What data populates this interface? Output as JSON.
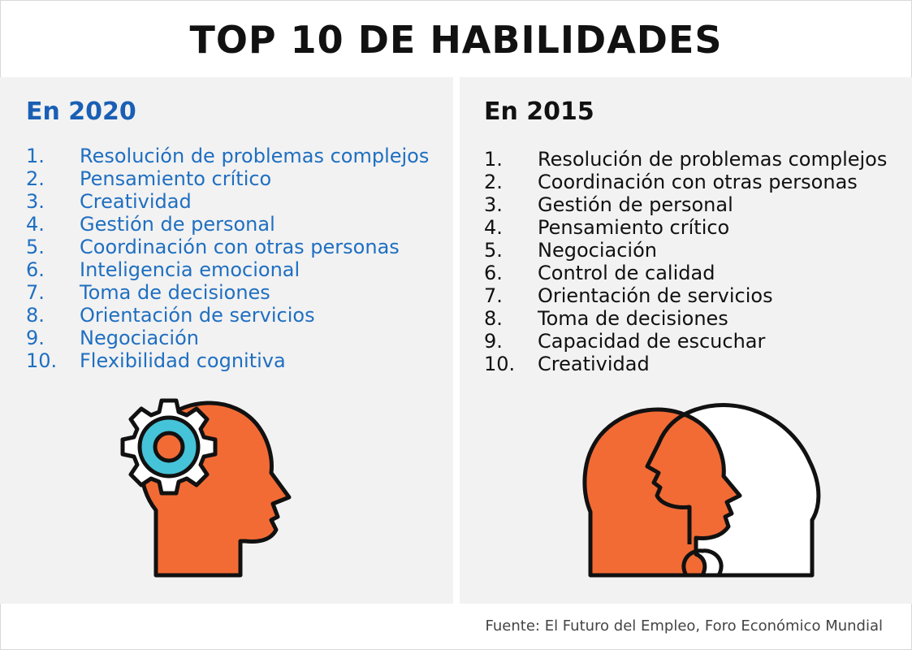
{
  "title": "TOP 10 DE HABILIDADES",
  "left": {
    "heading": "En 2020",
    "items": [
      {
        "num": "1.",
        "text": "Resolución de problemas complejos"
      },
      {
        "num": "2.",
        "text": "Pensamiento crítico"
      },
      {
        "num": "3.",
        "text": "Creatividad"
      },
      {
        "num": "4.",
        "text": "Gestión de personal"
      },
      {
        "num": "5.",
        "text": "Coordinación con otras personas"
      },
      {
        "num": "6.",
        "text": "Inteligencia emocional"
      },
      {
        "num": "7.",
        "text": "Toma de decisiones"
      },
      {
        "num": "8.",
        "text": "Orientación de servicios"
      },
      {
        "num": "9.",
        "text": "Negociación"
      },
      {
        "num": "10.",
        "text": "Flexibilidad cognitiva"
      }
    ]
  },
  "right": {
    "heading": "En 2015",
    "items": [
      {
        "num": "1.",
        "text": "Resolución de problemas complejos"
      },
      {
        "num": "2.",
        "text": "Coordinación con otras personas"
      },
      {
        "num": "3.",
        "text": "Gestión de personal"
      },
      {
        "num": "4.",
        "text": "Pensamiento crítico"
      },
      {
        "num": "5.",
        "text": "Negociación"
      },
      {
        "num": "6.",
        "text": "Control de calidad"
      },
      {
        "num": "7.",
        "text": "Orientación de servicios"
      },
      {
        "num": "8.",
        "text": "Toma de decisiones"
      },
      {
        "num": "9.",
        "text": "Capacidad de escuchar"
      },
      {
        "num": "10.",
        "text": "Creatividad"
      }
    ]
  },
  "source": "Fuente: El Futuro del Empleo, Foro Económico Mundial",
  "icons": {
    "left": "head-with-gear-icon",
    "right": "overlapping-heads-icon"
  },
  "colors": {
    "blue_heading": "#1a5fb4",
    "blue_text": "#1f6fc1",
    "orange": "#f26b35",
    "cyan": "#45c3d9",
    "panel": "#f2f2f2"
  }
}
